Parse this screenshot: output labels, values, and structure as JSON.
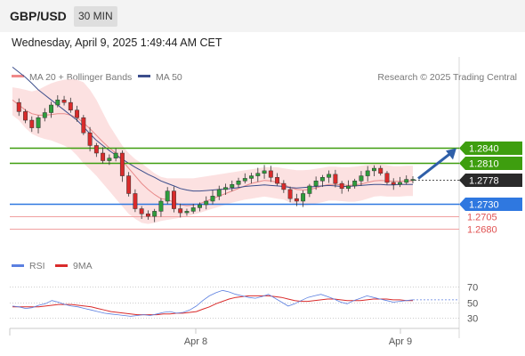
{
  "header": {
    "pair": "GBP/USD",
    "timeframe": "30 MIN",
    "datetime": "Wednesday, April 9, 2025 1:49:44 AM CET"
  },
  "legend": {
    "ma20_bb": "MA 20 + Bollinger Bands",
    "ma50": "MA 50",
    "copyright": "Research © 2025 Trading Central",
    "rsi": "RSI",
    "ma9": "9MA"
  },
  "colors": {
    "resistance": "#3e9e0f",
    "support": "#2f78e0",
    "weak_level": "#e05252",
    "current_price": "#2a2a2a",
    "candle_up": "#2e9d3c",
    "candle_down": "#d92b2b",
    "bollinger_fill": "#fbdcdc",
    "ma50": "#3c4e8c",
    "ma20": "#e88a8a",
    "rsi": "#5b7fe0",
    "rsi_ma": "#d92b2b",
    "arrow": "#2f5fa8"
  },
  "chart_data": [
    {
      "type": "candlestick",
      "x_axis_labels": [
        "Apr 8",
        "Apr 9"
      ],
      "y_range": [
        1.264,
        1.302
      ],
      "levels": [
        {
          "value": 1.284,
          "label": "1.2840",
          "kind": "resistance"
        },
        {
          "value": 1.281,
          "label": "1.2810",
          "kind": "resistance"
        },
        {
          "value": 1.2778,
          "label": "1.2778",
          "kind": "current"
        },
        {
          "value": 1.273,
          "label": "1.2730",
          "kind": "support"
        },
        {
          "value": 1.2705,
          "label": "1.2705",
          "kind": "weak"
        },
        {
          "value": 1.268,
          "label": "1.2680",
          "kind": "weak"
        }
      ],
      "close_path": [
        1.293,
        1.2912,
        1.2895,
        1.288,
        1.29,
        1.291,
        1.2925,
        1.2935,
        1.293,
        1.2915,
        1.29,
        1.287,
        1.2845,
        1.283,
        1.2815,
        1.282,
        1.283,
        1.2785,
        1.275,
        1.272,
        1.271,
        1.2705,
        1.2715,
        1.2735,
        1.2755,
        1.272,
        1.2712,
        1.2715,
        1.2722,
        1.2728,
        1.2735,
        1.2745,
        1.2758,
        1.2762,
        1.2768,
        1.2775,
        1.278,
        1.2785,
        1.279,
        1.2795,
        1.2782,
        1.277,
        1.2758,
        1.274,
        1.2735,
        1.275,
        1.2765,
        1.2775,
        1.2782,
        1.2788,
        1.277,
        1.276,
        1.2765,
        1.2775,
        1.2785,
        1.2795,
        1.28,
        1.279,
        1.2772,
        1.2768,
        1.2772,
        1.2778,
        1.2778
      ],
      "ma50": [
        1.3,
        1.299,
        1.298,
        1.2968,
        1.2955,
        1.2945,
        1.2935,
        1.2925,
        1.2915,
        1.2905,
        1.2895,
        1.2882,
        1.2868,
        1.2855,
        1.2845,
        1.2835,
        1.2826,
        1.2818,
        1.281,
        1.2802,
        1.2795,
        1.2788,
        1.2782,
        1.2775,
        1.277,
        1.2765,
        1.276,
        1.2757,
        1.2755,
        1.2755,
        1.2756,
        1.2757,
        1.2758,
        1.2759,
        1.276,
        1.2762,
        1.2764,
        1.2765,
        1.2766,
        1.2767,
        1.2766,
        1.2765,
        1.2764,
        1.2762,
        1.2761,
        1.2762,
        1.2763,
        1.2764,
        1.2765,
        1.2766,
        1.2765,
        1.2764,
        1.2764,
        1.2765,
        1.2766,
        1.2767,
        1.2768,
        1.2768,
        1.2767,
        1.2767,
        1.2768,
        1.2768,
        1.2768
      ],
      "ma20": [
        1.2935,
        1.2925,
        1.2915,
        1.2908,
        1.2905,
        1.2905,
        1.2906,
        1.2908,
        1.2908,
        1.2905,
        1.29,
        1.289,
        1.2878,
        1.2865,
        1.2852,
        1.284,
        1.283,
        1.2815,
        1.28,
        1.2785,
        1.277,
        1.2758,
        1.2748,
        1.274,
        1.2738,
        1.2733,
        1.2728,
        1.2726,
        1.2727,
        1.273,
        1.2735,
        1.274,
        1.2745,
        1.275,
        1.2755,
        1.276,
        1.2765,
        1.277,
        1.2773,
        1.2776,
        1.2775,
        1.2772,
        1.2768,
        1.2762,
        1.2758,
        1.2757,
        1.2758,
        1.2761,
        1.2765,
        1.2768,
        1.2768,
        1.2767,
        1.2766,
        1.2767,
        1.2769,
        1.2772,
        1.2775,
        1.2776,
        1.2775,
        1.2774,
        1.2774,
        1.2775,
        1.2775
      ],
      "bb_upper": [
        1.296,
        1.2958,
        1.2955,
        1.2952,
        1.2955,
        1.2962,
        1.2968,
        1.2972,
        1.2975,
        1.2976,
        1.2975,
        1.297,
        1.2955,
        1.2935,
        1.291,
        1.2885,
        1.2865,
        1.2845,
        1.283,
        1.2818,
        1.281,
        1.28,
        1.279,
        1.2783,
        1.278,
        1.278,
        1.278,
        1.278,
        1.278,
        1.2782,
        1.2784,
        1.2786,
        1.2788,
        1.279,
        1.2792,
        1.2794,
        1.2796,
        1.2798,
        1.28,
        1.2802,
        1.2802,
        1.2802,
        1.28,
        1.2798,
        1.2796,
        1.2796,
        1.2797,
        1.2799,
        1.2801,
        1.2803,
        1.2803,
        1.2802,
        1.2802,
        1.2803,
        1.2805,
        1.2807,
        1.2808,
        1.2808,
        1.2806,
        1.2804,
        1.2804,
        1.2805,
        1.2805
      ],
      "bb_lower": [
        1.2905,
        1.2895,
        1.288,
        1.2868,
        1.2862,
        1.2858,
        1.2855,
        1.285,
        1.2845,
        1.2838,
        1.2825,
        1.281,
        1.2798,
        1.2785,
        1.277,
        1.2755,
        1.274,
        1.2725,
        1.271,
        1.27,
        1.2692,
        1.269,
        1.2692,
        1.2696,
        1.2698,
        1.27,
        1.2702,
        1.2705,
        1.2708,
        1.2712,
        1.2716,
        1.272,
        1.2724,
        1.2728,
        1.2732,
        1.2735,
        1.2738,
        1.274,
        1.2742,
        1.2744,
        1.2742,
        1.274,
        1.2738,
        1.2732,
        1.2728,
        1.2726,
        1.2727,
        1.273,
        1.2733,
        1.2736,
        1.2736,
        1.2735,
        1.2734,
        1.2734,
        1.2736,
        1.274,
        1.2744,
        1.2745,
        1.2744,
        1.2744,
        1.2744,
        1.2745,
        1.2745
      ],
      "projection": {
        "from": 1.2778,
        "to": 1.284
      }
    },
    {
      "type": "line",
      "name": "RSI",
      "y_ticks": [
        70,
        50,
        30
      ],
      "y_range": [
        20,
        80
      ],
      "rsi": [
        45,
        44,
        42,
        43,
        46,
        48,
        52,
        50,
        47,
        45,
        44,
        42,
        40,
        38,
        36,
        35,
        34,
        33,
        32,
        33,
        34,
        33,
        35,
        37,
        38,
        36,
        37,
        40,
        45,
        52,
        58,
        62,
        65,
        63,
        60,
        58,
        56,
        55,
        57,
        60,
        55,
        50,
        45,
        48,
        52,
        56,
        58,
        60,
        57,
        54,
        50,
        48,
        52,
        55,
        58,
        56,
        54,
        52,
        50,
        51,
        52,
        53
      ],
      "rsi_ma": [
        44,
        44,
        44,
        44,
        44,
        45,
        46,
        47,
        47,
        47,
        46,
        45,
        44,
        42,
        40,
        38,
        37,
        36,
        35,
        34,
        34,
        34,
        34,
        35,
        35,
        36,
        36,
        37,
        38,
        41,
        44,
        48,
        51,
        54,
        56,
        57,
        58,
        58,
        58,
        58,
        57,
        56,
        54,
        52,
        51,
        51,
        52,
        53,
        54,
        54,
        53,
        52,
        52,
        52,
        53,
        54,
        54,
        54,
        53,
        53,
        52,
        52
      ]
    }
  ]
}
